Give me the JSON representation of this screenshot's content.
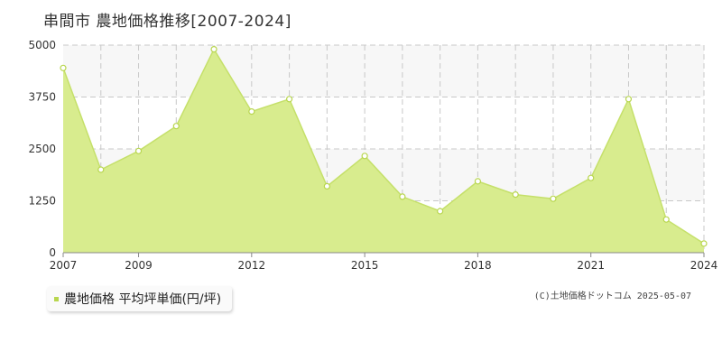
{
  "title": "串間市  農地価格推移[2007-2024]",
  "legend_label": "農地価格 平均坪単価(円/坪)",
  "copyright": "(C)土地価格ドットコム 2025-05-07",
  "colors": {
    "area_fill": "#d8ec8e",
    "line": "#c5e06a",
    "marker_fill": "#ffffff",
    "marker_stroke": "#b8d64e",
    "grid": "#c8c8c8",
    "band": "#f7f7f7",
    "axis": "#888888",
    "legend_marker": "#b8d64e"
  },
  "chart_data": {
    "type": "area",
    "x": [
      2007,
      2008,
      2009,
      2010,
      2011,
      2012,
      2013,
      2014,
      2015,
      2016,
      2017,
      2018,
      2019,
      2020,
      2021,
      2022,
      2023,
      2024
    ],
    "series": [
      {
        "name": "農地価格 平均坪単価(円/坪)",
        "values": [
          4450,
          2000,
          2450,
          3050,
          4900,
          3400,
          3700,
          1600,
          2330,
          1350,
          1000,
          1720,
          1400,
          1300,
          1800,
          3700,
          800,
          220
        ]
      }
    ],
    "xlim": [
      2007,
      2024
    ],
    "ylim": [
      0,
      5000
    ],
    "x_ticks": [
      "2007",
      "2009",
      "2012",
      "2015",
      "2018",
      "2021",
      "2024"
    ],
    "y_ticks": [
      "0",
      "1250",
      "2500",
      "3750",
      "5000"
    ],
    "grid": true,
    "legend_position": "bottom-left"
  }
}
